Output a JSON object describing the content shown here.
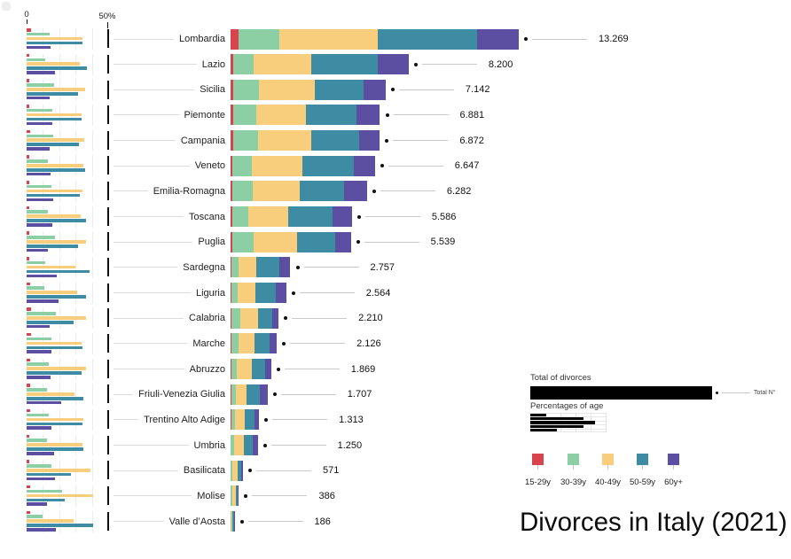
{
  "title": "Divorces in Italy (2021)",
  "axis": {
    "zero": "0",
    "fifty": "50%"
  },
  "legend": {
    "total_title": "Total of divorces",
    "total_annotation": "Total N°",
    "pct_title": "Percentages of age",
    "age_groups": [
      {
        "label": "15-29y",
        "color": "#d8434e"
      },
      {
        "label": "30-39y",
        "color": "#8ccfa5"
      },
      {
        "label": "40-49y",
        "color": "#f8cd7c"
      },
      {
        "label": "50-59y",
        "color": "#3d8ca4"
      },
      {
        "label": "60y+",
        "color": "#5c4fa1"
      }
    ]
  },
  "chart_data": {
    "type": "bar",
    "orientation": "horizontal-stacked",
    "title": "Divorces in Italy (2021)",
    "xlabel": "",
    "ylabel": "",
    "grid": true,
    "legend_position": "bottom-right",
    "pct_axis": {
      "min": 0,
      "ref": 50,
      "ref_label": "50%",
      "zero_label": "0"
    },
    "categories": [
      "Lombardia",
      "Lazio",
      "Sicilia",
      "Piemonte",
      "Campania",
      "Veneto",
      "Emilia-Romagna",
      "Toscana",
      "Puglia",
      "Sardegna",
      "Liguria",
      "Calabria",
      "Marche",
      "Abruzzo",
      "Friuli-Venezia Giulia",
      "Trentino Alto Adige",
      "Umbria",
      "Basilicata",
      "Molise",
      "Valle d’Aosta"
    ],
    "totals": [
      13269,
      8200,
      7142,
      6881,
      6872,
      6647,
      6282,
      5586,
      5539,
      2757,
      2564,
      2210,
      2126,
      1869,
      1707,
      1313,
      1250,
      571,
      386,
      186
    ],
    "totals_display": [
      "13.269",
      "8.200",
      "7.142",
      "6.881",
      "6.872",
      "6.647",
      "6.282",
      "5.586",
      "5.539",
      "2.757",
      "2.564",
      "2.210",
      "2.126",
      "1.869",
      "1.707",
      "1.313",
      "1.250",
      "571",
      "386",
      "186"
    ],
    "series": [
      {
        "name": "15-29y",
        "color": "#d8434e",
        "values": [
          2.8,
          1.5,
          1.5,
          1.5,
          2.0,
          1.5,
          1.5,
          1.5,
          1.5,
          1.5,
          2.0,
          2.5,
          2.5,
          2.0,
          2.0,
          2.0,
          1.5,
          1.5,
          2.0,
          2.0
        ]
      },
      {
        "name": "30-39y",
        "color": "#8ccfa5",
        "values": [
          14.2,
          11.5,
          17.0,
          15.5,
          16.5,
          13.0,
          15.0,
          13.0,
          17.5,
          11.5,
          11.0,
          18.0,
          15.0,
          13.5,
          12.5,
          13.5,
          12.5,
          15.0,
          21.5,
          10.0
        ]
      },
      {
        "name": "40-49y",
        "color": "#f8cd7c",
        "values": [
          34.0,
          32.5,
          36.0,
          33.5,
          35.5,
          35.0,
          34.5,
          33.0,
          36.5,
          30.0,
          31.0,
          36.5,
          33.5,
          36.5,
          29.5,
          35.0,
          34.0,
          39.0,
          40.5,
          29.0
        ]
      },
      {
        "name": "50-59y",
        "color": "#3d8ca4",
        "values": [
          34.5,
          37.0,
          31.5,
          33.5,
          32.0,
          36.0,
          32.5,
          36.5,
          31.5,
          38.5,
          36.5,
          29.0,
          34.0,
          33.5,
          35.0,
          34.5,
          35.0,
          27.0,
          23.5,
          41.0
        ]
      },
      {
        "name": "60y+",
        "color": "#5c4fa1",
        "values": [
          14.5,
          17.5,
          14.0,
          16.0,
          14.0,
          14.5,
          16.5,
          16.0,
          13.0,
          18.5,
          19.5,
          14.0,
          15.0,
          14.5,
          21.0,
          15.0,
          17.0,
          17.5,
          12.5,
          18.0
        ]
      }
    ],
    "units": {
      "totals": "number of divorces",
      "series_values": "percent of region total"
    }
  }
}
